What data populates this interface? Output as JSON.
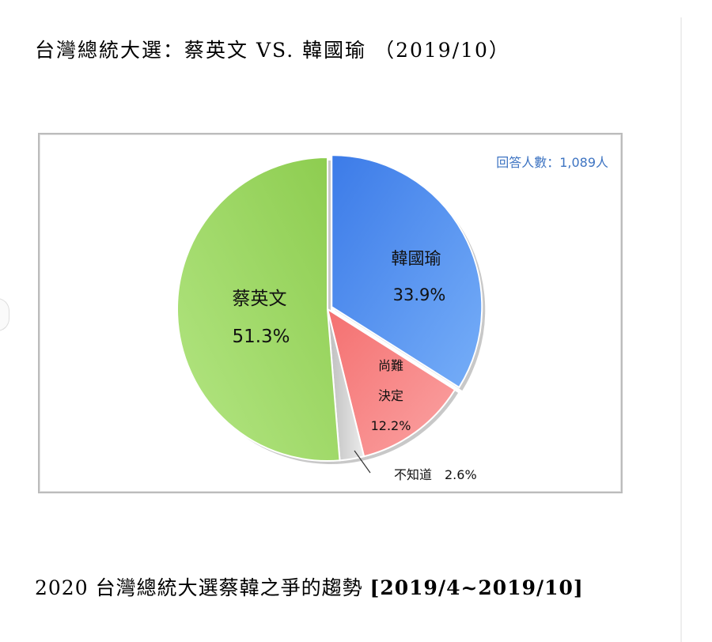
{
  "page": {
    "title": "台灣總統大選：蔡英文 VS. 韓國瑜 （2019/10）",
    "bottom_title_prefix": "2020 台灣總統大選蔡韓之爭的趨勢 ",
    "bottom_title_range": "[2019/4~2019/10]"
  },
  "chart_data": {
    "type": "pie",
    "respondents_label": "回答人數：1,089人",
    "slices": [
      {
        "name": "韓國瑜",
        "value_label": "33.9%",
        "value": 33.9,
        "color": "#5b97f5"
      },
      {
        "name": "尚難決定",
        "name_lines": [
          "尚難",
          "決定"
        ],
        "value_label": "12.2%",
        "value": 12.2,
        "color": "#f88888"
      },
      {
        "name": "不知道",
        "value_label": "2.6%",
        "value": 2.6,
        "color": "#d8d8d8"
      },
      {
        "name": "蔡英文",
        "value_label": "51.3%",
        "value": 51.3,
        "color": "#a3dc6a"
      }
    ],
    "start_angle": "12 o'clock",
    "direction": "clockwise"
  }
}
